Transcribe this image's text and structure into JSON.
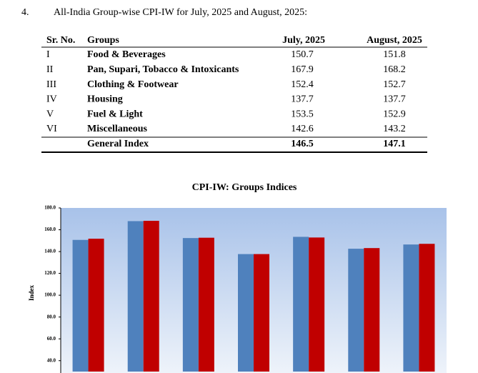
{
  "heading": {
    "number": "4.",
    "text": "All-India Group-wise CPI-IW for July, 2025 and August, 2025:"
  },
  "table": {
    "header": [
      "Sr. No.",
      "Groups",
      "July, 2025",
      "August, 2025"
    ],
    "rows": [
      [
        "I",
        "Food & Beverages",
        "150.7",
        "151.8"
      ],
      [
        "II",
        "Pan, Supari, Tobacco & Intoxicants",
        "167.9",
        "168.2"
      ],
      [
        "III",
        "Clothing & Footwear",
        "152.4",
        "152.7"
      ],
      [
        "IV",
        "Housing",
        "137.7",
        "137.7"
      ],
      [
        "V",
        "Fuel & Light",
        "153.5",
        "152.9"
      ],
      [
        "VI",
        "Miscellaneous",
        "142.6",
        "143.2"
      ]
    ],
    "total": [
      "General Index",
      "146.5",
      "147.1"
    ]
  },
  "chart_data": {
    "type": "bar",
    "title": "CPI-IW: Groups Indices",
    "y_label": "Index",
    "categories": [
      null,
      null,
      null,
      null,
      null,
      null,
      null
    ],
    "series": [
      {
        "color": "#4f81bd",
        "values": [
          150.7,
          167.9,
          152.4,
          137.7,
          153.5,
          142.6,
          146.5
        ]
      },
      {
        "color": "#c00000",
        "values": [
          151.8,
          168.2,
          152.7,
          137.7,
          152.9,
          143.2,
          147.1
        ]
      }
    ],
    "ylim": [
      30,
      180
    ],
    "yticks": [
      {
        "value": 40,
        "label": "40.0"
      },
      {
        "value": 60,
        "label": "60.0"
      },
      {
        "value": 80,
        "label": "80.0"
      },
      {
        "value": 100,
        "label": "100.0"
      },
      {
        "value": 120,
        "label": "120.0"
      },
      {
        "value": 140,
        "label": "140.0"
      },
      {
        "value": 160,
        "label": "160.0"
      },
      {
        "value": 180,
        "label": "180.0"
      }
    ]
  }
}
